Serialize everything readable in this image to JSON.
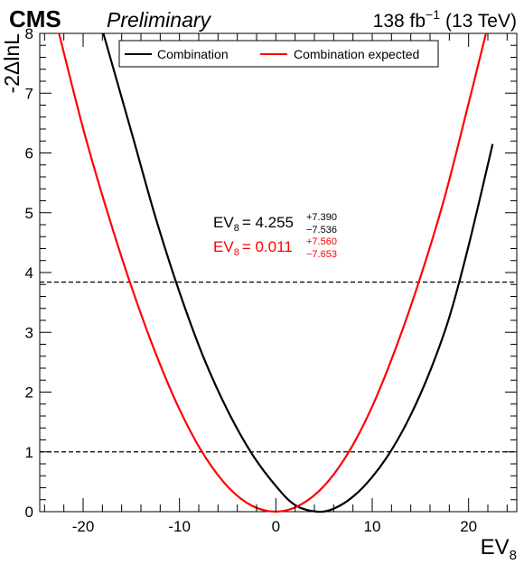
{
  "header": {
    "experiment": "CMS",
    "status": "Preliminary",
    "lumi": "138 fb",
    "lumi_exp": "−1",
    "energy": "(13 TeV)"
  },
  "legend": {
    "items": [
      {
        "label": "Combination",
        "color": "#000000"
      },
      {
        "label": "Combination expected",
        "color": "#ff0000"
      }
    ]
  },
  "results": {
    "observed": {
      "lhs_main": "EV",
      "lhs_sub": "8",
      "value": "= 4.255",
      "up": "+7.390",
      "down": "−7.536",
      "color": "#000000"
    },
    "expected": {
      "lhs_main": "EV",
      "lhs_sub": "8",
      "value": "= 0.011",
      "up": "+7.560",
      "down": "−7.653",
      "color": "#ff0000"
    }
  },
  "chart_data": {
    "type": "line",
    "xlabel_main": "EV",
    "xlabel_sub": "8",
    "ylabel": "-2ΔlnL",
    "xlim": [
      -24.5,
      25
    ],
    "ylim": [
      0,
      8
    ],
    "xticks": [
      -20,
      -10,
      0,
      10,
      20
    ],
    "yticks": [
      0,
      1,
      2,
      3,
      4,
      5,
      6,
      7,
      8
    ],
    "reference_lines": [
      1.0,
      3.84
    ],
    "series": [
      {
        "name": "Combination",
        "color": "#000000",
        "x": [
          -17.9,
          -15,
          -12.5,
          -10,
          -7.5,
          -5,
          -2.5,
          0,
          2,
          4.255,
          6,
          8,
          10,
          12,
          14,
          16,
          18,
          20,
          22.5
        ],
        "y": [
          8.0,
          6.36,
          4.93,
          3.67,
          2.58,
          1.69,
          0.97,
          0.43,
          0.11,
          0.0,
          0.05,
          0.25,
          0.58,
          1.03,
          1.62,
          2.35,
          3.25,
          4.45,
          6.15
        ]
      },
      {
        "name": "Combination expected",
        "color": "#ff0000",
        "x": [
          -22.5,
          -20,
          -17.5,
          -15,
          -12.5,
          -10,
          -7.5,
          -5,
          -2.5,
          0.011,
          2.5,
          5,
          7.5,
          10,
          12.5,
          15,
          17.5,
          20,
          21.8
        ],
        "y": [
          8.0,
          6.41,
          5.02,
          3.77,
          2.66,
          1.71,
          0.96,
          0.42,
          0.1,
          0.0,
          0.11,
          0.43,
          0.98,
          1.76,
          2.76,
          3.92,
          5.25,
          6.83,
          8.0
        ]
      }
    ]
  }
}
